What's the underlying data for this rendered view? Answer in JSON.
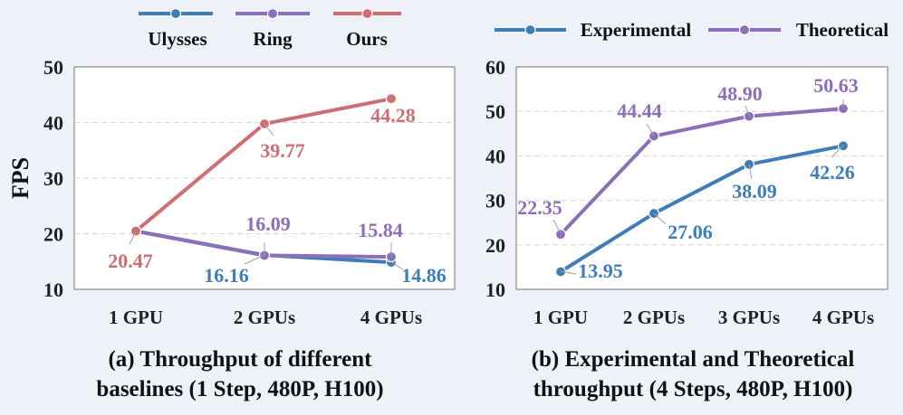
{
  "chart_data": [
    {
      "type": "line",
      "categories": [
        "1 GPU",
        "2 GPUs",
        "4 GPUs"
      ],
      "ylabel": "FPS",
      "ylim": [
        10,
        50
      ],
      "yticks": [
        10,
        20,
        30,
        40,
        50
      ],
      "legend": "top",
      "series": [
        {
          "name": "Ulysses",
          "color": "#3f7db9",
          "values": [
            20.47,
            16.16,
            14.86
          ],
          "labels": [
            "",
            "16.16",
            "14.86"
          ]
        },
        {
          "name": "Ring",
          "color": "#8b6fb8",
          "values": [
            20.47,
            16.09,
            15.84
          ],
          "labels": [
            "",
            "16.09",
            "15.84"
          ]
        },
        {
          "name": "Ours",
          "color": "#cd6e72",
          "values": [
            20.47,
            39.77,
            44.28
          ],
          "labels": [
            "20.47",
            "39.77",
            "44.28"
          ]
        }
      ],
      "caption": [
        "(a) Throughput of different",
        "baselines (1 Step, 480P, H100)"
      ]
    },
    {
      "type": "line",
      "categories": [
        "1 GPU",
        "2 GPUs",
        "3 GPUs",
        "4 GPUs"
      ],
      "ylabel": "",
      "ylim": [
        10,
        60
      ],
      "yticks": [
        10,
        20,
        30,
        40,
        50,
        60
      ],
      "legend": "top",
      "series": [
        {
          "name": "Experimental",
          "color": "#3f7db9",
          "values": [
            13.95,
            27.06,
            38.09,
            42.26
          ],
          "labels": [
            "13.95",
            "27.06",
            "38.09",
            "42.26"
          ]
        },
        {
          "name": "Theoretical",
          "color": "#8b6fb8",
          "values": [
            22.35,
            44.44,
            48.9,
            50.63
          ],
          "labels": [
            "22.35",
            "44.44",
            "48.90",
            "50.63"
          ]
        }
      ],
      "caption": [
        "(b) Experimental and Theoretical",
        "throughput (4 Steps, 480P, H100)"
      ]
    }
  ]
}
